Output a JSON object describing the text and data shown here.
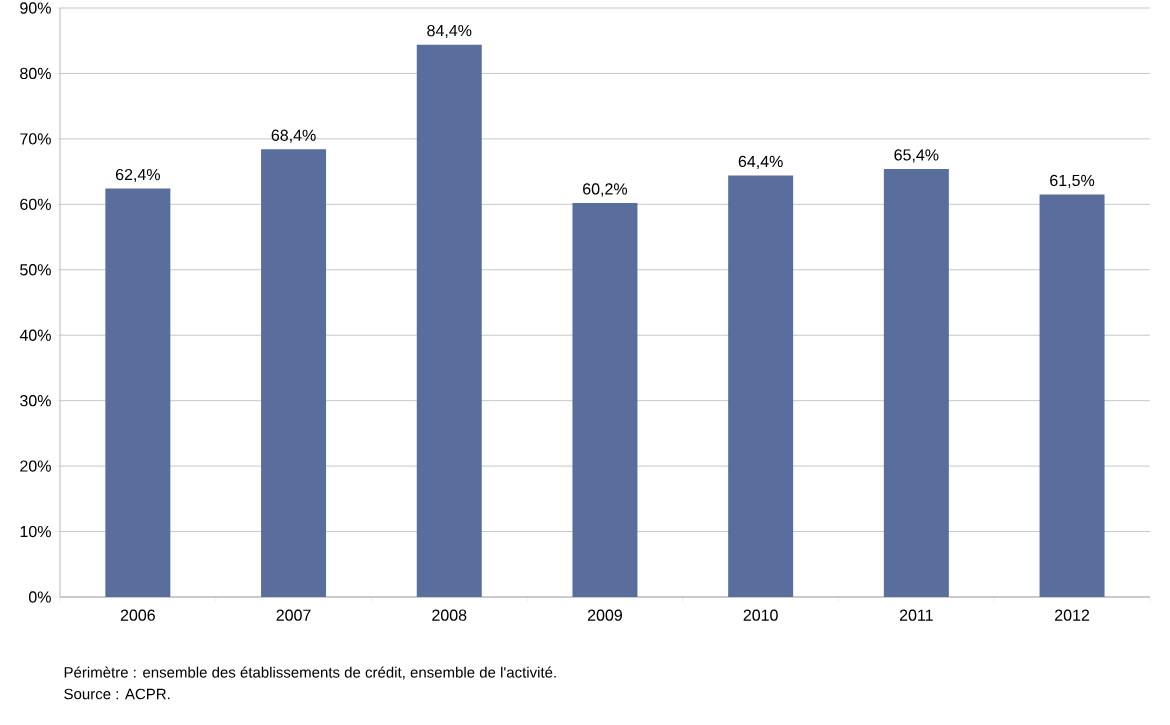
{
  "chart_data": {
    "type": "bar",
    "categories": [
      "2006",
      "2007",
      "2008",
      "2009",
      "2010",
      "2011",
      "2012"
    ],
    "values": [
      62.4,
      68.4,
      84.4,
      60.2,
      64.4,
      65.4,
      61.5
    ],
    "value_labels": [
      "62,4%",
      "68,4%",
      "84,4%",
      "60,2%",
      "64,4%",
      "65,4%",
      "61,5%"
    ],
    "color": "#5a6e9e",
    "ylim": [
      0,
      90
    ],
    "yticks": [
      {
        "value": 0,
        "label": "0%"
      },
      {
        "value": 10,
        "label": "10%"
      },
      {
        "value": 20,
        "label": "20%"
      },
      {
        "value": 30,
        "label": "30%"
      },
      {
        "value": 40,
        "label": "40%"
      },
      {
        "value": 50,
        "label": "50%"
      },
      {
        "value": 60,
        "label": "60%"
      },
      {
        "value": 70,
        "label": "70%"
      },
      {
        "value": 80,
        "label": "80%"
      },
      {
        "value": 90,
        "label": "90%"
      }
    ],
    "grid": "y",
    "annotations": [
      "Périmètre : ensemble des établissements de crédit, ensemble de l'activité.",
      "Source : ACPR."
    ]
  }
}
